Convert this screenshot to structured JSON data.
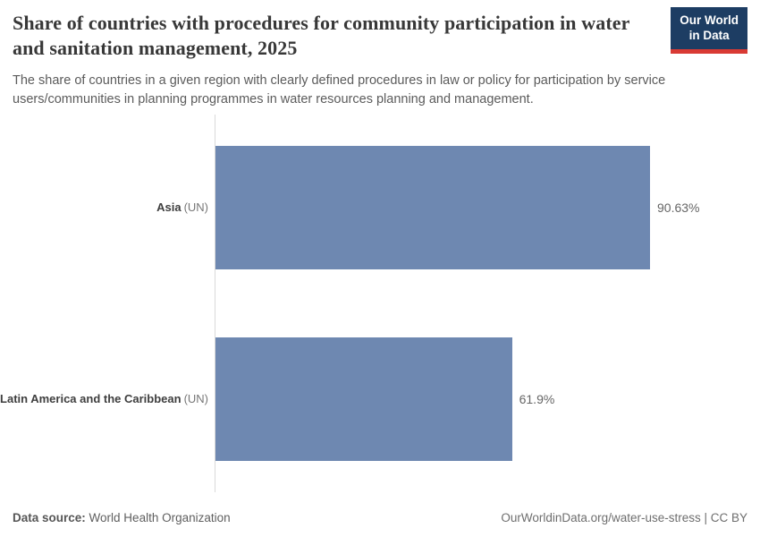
{
  "header": {
    "title": "Share of countries with procedures for community participation in water and sanitation management, 2025",
    "subtitle": "The share of countries in a given region with clearly defined procedures in law or policy for participation by service users/communities in planning programmes in water resources planning and management.",
    "logo": {
      "line1": "Our World",
      "line2": "in Data",
      "bg_color": "#1d3d63",
      "accent_color": "#d93a34"
    }
  },
  "chart_data": {
    "type": "bar",
    "orientation": "horizontal",
    "title": "Share of countries with procedures for community participation in water and sanitation management, 2025",
    "categories": [
      "Asia (UN)",
      "Latin America and the Caribbean (UN)"
    ],
    "values": [
      90.63,
      61.9
    ],
    "xlabel": "",
    "ylabel": "",
    "xlim": [
      0,
      100
    ],
    "grid": false,
    "legend": false,
    "bar_color": "#6e88b1",
    "rows": [
      {
        "name": "Asia",
        "suffix": "(UN)",
        "value": 90.63,
        "value_label": "90.63%"
      },
      {
        "name": "Latin America and the Caribbean",
        "suffix": "(UN)",
        "value": 61.9,
        "value_label": "61.9%"
      }
    ]
  },
  "footer": {
    "datasource_label": "Data source:",
    "datasource_value": "World Health Organization",
    "link_text": "OurWorldinData.org/water-use-stress",
    "separator": " | ",
    "license": "CC BY"
  }
}
